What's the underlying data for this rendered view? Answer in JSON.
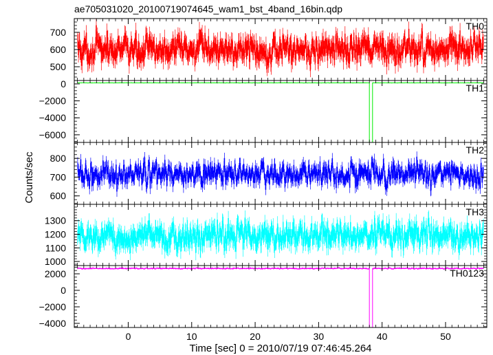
{
  "title": "ae705031020_20100719074645_wam1_bst_4band_16bin.qdp",
  "xlabel": "Time [sec] 0 = 2010/07/19 07:46:45.264",
  "ylabel": "Counts/sec",
  "chart_data": {
    "type": "line",
    "title": "ae705031020_20100719074645_wam1_bst_4band_16bin.qdp",
    "xlabel": "Time [sec] 0 = 2010/07/19 07:46:45.264",
    "ylabel": "Counts/sec",
    "xlim": [
      -8.5,
      56.5
    ],
    "x_ticks": [
      "0",
      "10",
      "20",
      "30",
      "40",
      "50"
    ],
    "x_tick_values": [
      0,
      10,
      20,
      30,
      40,
      50
    ],
    "grid": false,
    "panels": [
      {
        "name": "TH0",
        "color": "#ff0000",
        "ylim": [
          420,
          780
        ],
        "y_ticks": [
          "500",
          "600",
          "700"
        ],
        "y_tick_values": [
          500,
          600,
          700
        ],
        "mean": 600,
        "spread": 55,
        "errbar": 45,
        "dip": null
      },
      {
        "name": "TH1",
        "color": "#00ee00",
        "ylim": [
          -6900,
          400
        ],
        "y_ticks": [
          "0",
          "−2000",
          "−4000",
          "−6000"
        ],
        "y_tick_values": [
          0,
          -2000,
          -4000,
          -6000
        ],
        "mean": 120,
        "spread": 6,
        "errbar": 10,
        "dip": {
          "x_start": 38.0,
          "x_end": 38.5,
          "value": -6900
        }
      },
      {
        "name": "TH2",
        "color": "#0000ff",
        "ylim": [
          555,
          885
        ],
        "y_ticks": [
          "600",
          "700",
          "800"
        ],
        "y_tick_values": [
          600,
          700,
          800
        ],
        "mean": 715,
        "spread": 42,
        "errbar": 30,
        "dip": null
      },
      {
        "name": "TH3",
        "color": "#00ffff",
        "ylim": [
          970,
          1420
        ],
        "y_ticks": [
          "1000",
          "1100",
          "1200",
          "1300"
        ],
        "y_tick_values": [
          1000,
          1100,
          1200,
          1300
        ],
        "mean": 1185,
        "spread": 62,
        "errbar": 55,
        "dip": null
      },
      {
        "name": "TH0123",
        "color": "#ff00ff",
        "ylim": [
          -4500,
          3000
        ],
        "y_ticks": [
          "2000",
          "0",
          "−2000",
          "−4000"
        ],
        "y_tick_values": [
          2000,
          0,
          -2000,
          -4000
        ],
        "mean": 2650,
        "spread": 45,
        "errbar": 60,
        "dip": {
          "x_start": 38.0,
          "x_end": 38.5,
          "value": -4500
        }
      }
    ],
    "bin_width": 0.0625
  }
}
